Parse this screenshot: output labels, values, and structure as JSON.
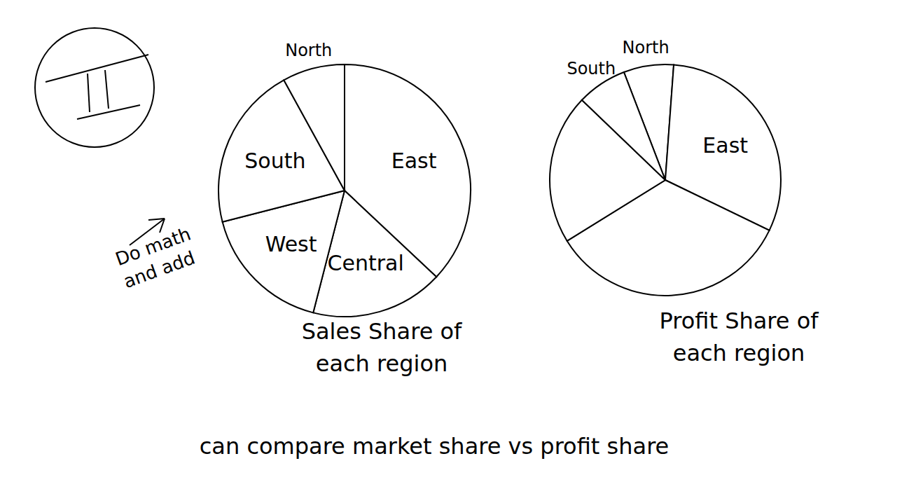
{
  "chart_data": [
    {
      "type": "pie",
      "title": "Sales Share of each region",
      "categories": [
        "East",
        "Central",
        "West",
        "South",
        "North"
      ],
      "values": [
        37,
        17,
        17,
        21,
        8
      ],
      "color": "#ffffff"
    },
    {
      "type": "pie",
      "title": "Profit Share of each region",
      "categories": [
        "North",
        "East",
        null,
        null,
        "South"
      ],
      "values": [
        7,
        31,
        34,
        21,
        7
      ],
      "color": "#ffffff"
    }
  ],
  "annotations": [
    "Do math and add",
    "can compare market share vs profit share"
  ]
}
